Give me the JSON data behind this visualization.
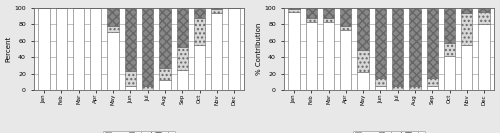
{
  "months": [
    "Jan",
    "Feb",
    "Mar",
    "Apr",
    "May",
    "Jun",
    "Jul",
    "Aug",
    "Sep",
    "Oct",
    "Nov",
    "Dec"
  ],
  "barrow": {
    "snow": [
      100,
      100,
      100,
      100,
      70,
      5,
      0,
      12,
      25,
      55,
      93,
      100
    ],
    "mixed": [
      0,
      0,
      0,
      0,
      8,
      18,
      5,
      15,
      28,
      33,
      5,
      0
    ],
    "rain": [
      0,
      0,
      0,
      0,
      22,
      77,
      95,
      73,
      47,
      12,
      2,
      0
    ]
  },
  "nome": {
    "snow": [
      95,
      83,
      83,
      73,
      22,
      5,
      0,
      0,
      5,
      42,
      55,
      80
    ],
    "mixed": [
      3,
      5,
      5,
      5,
      27,
      10,
      5,
      5,
      10,
      15,
      38,
      15
    ],
    "rain": [
      2,
      12,
      12,
      22,
      51,
      85,
      95,
      95,
      85,
      43,
      7,
      5
    ]
  },
  "ylabel_left": "Percent",
  "ylabel_right": "% Contribution",
  "ylim": [
    0,
    100
  ],
  "yticks": [
    0,
    20,
    40,
    60,
    80,
    100
  ],
  "snow_color": "#ffffff",
  "mixed_color": "#d8d8d8",
  "rain_color": "#888888",
  "snow_hatch": "",
  "mixed_hatch": "....",
  "rain_hatch": "xxxx",
  "edgecolor": "#666666",
  "background": "#ffffff",
  "fig_background": "#e8e8e8"
}
